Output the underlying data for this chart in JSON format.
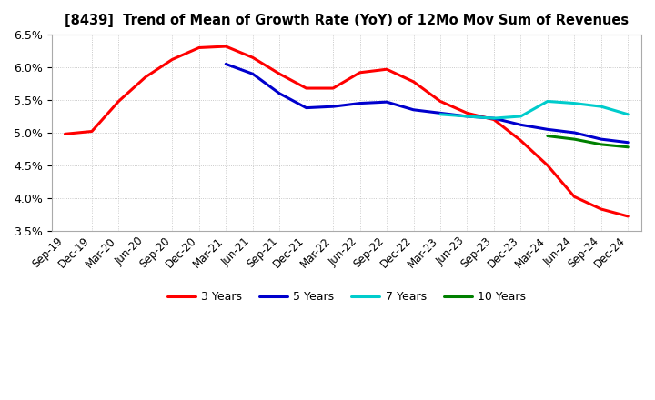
{
  "title": "[8439]  Trend of Mean of Growth Rate (YoY) of 12Mo Mov Sum of Revenues",
  "ylim": [
    0.035,
    0.065
  ],
  "yticks": [
    0.035,
    0.04,
    0.045,
    0.05,
    0.055,
    0.06,
    0.065
  ],
  "background_color": "#ffffff",
  "grid_color": "#bbbbbb",
  "legend_labels": [
    "3 Years",
    "5 Years",
    "7 Years",
    "10 Years"
  ],
  "legend_colors": [
    "#ff0000",
    "#0000cd",
    "#00cccc",
    "#008000"
  ],
  "x_labels": [
    "Sep-19",
    "Dec-19",
    "Mar-20",
    "Jun-20",
    "Sep-20",
    "Dec-20",
    "Mar-21",
    "Jun-21",
    "Sep-21",
    "Dec-21",
    "Mar-22",
    "Jun-22",
    "Sep-22",
    "Dec-22",
    "Mar-23",
    "Jun-23",
    "Sep-23",
    "Dec-23",
    "Mar-24",
    "Jun-24",
    "Sep-24",
    "Dec-24"
  ],
  "series_3yr": [
    0.0498,
    0.0502,
    0.0548,
    0.0585,
    0.0612,
    0.063,
    0.0632,
    0.0615,
    0.059,
    0.0568,
    0.0568,
    0.0592,
    0.0597,
    0.0578,
    0.0548,
    0.053,
    0.052,
    0.0488,
    0.045,
    0.0402,
    0.0383,
    0.0372
  ],
  "series_5yr": [
    null,
    null,
    null,
    null,
    null,
    null,
    0.0605,
    0.059,
    0.056,
    0.0538,
    0.054,
    0.0545,
    0.0547,
    0.0535,
    0.053,
    0.0525,
    0.0522,
    0.0512,
    0.0505,
    0.05,
    0.049,
    0.0485
  ],
  "series_7yr": [
    null,
    null,
    null,
    null,
    null,
    null,
    null,
    null,
    null,
    null,
    null,
    null,
    null,
    null,
    0.0528,
    0.0525,
    0.0522,
    0.0525,
    0.0548,
    0.0545,
    0.054,
    0.0528
  ],
  "series_10yr": [
    null,
    null,
    null,
    null,
    null,
    null,
    null,
    null,
    null,
    null,
    null,
    null,
    null,
    null,
    null,
    null,
    null,
    null,
    0.0495,
    0.049,
    0.0482,
    0.0478
  ]
}
